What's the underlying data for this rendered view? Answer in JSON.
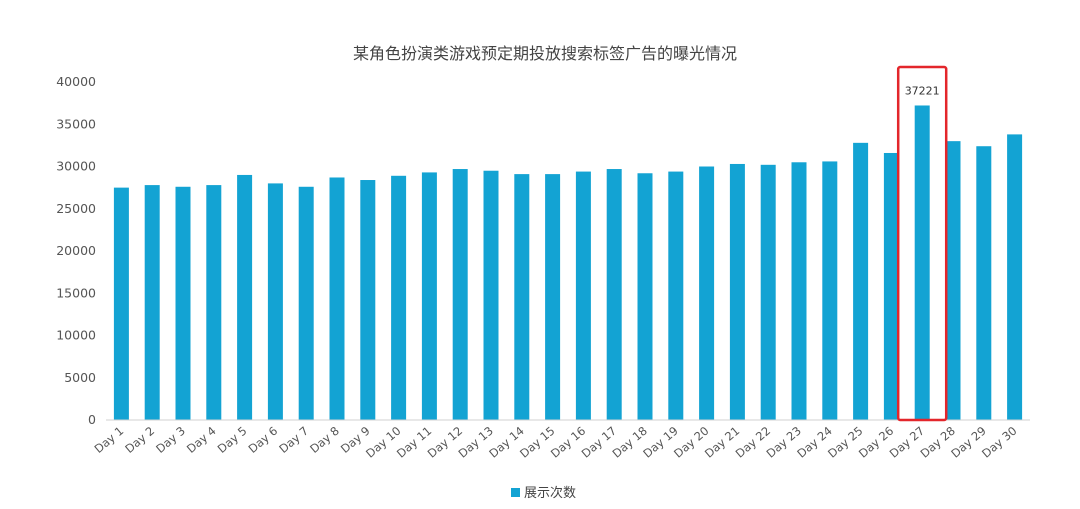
{
  "chart_data": {
    "type": "bar",
    "title": "某角色扮演类游戏预定期投放搜索标签广告的曝光情况",
    "xlabel": "",
    "ylabel": "",
    "ylim": [
      0,
      40000
    ],
    "yticks": [
      0,
      5000,
      10000,
      15000,
      20000,
      25000,
      30000,
      35000,
      40000
    ],
    "grid": false,
    "legend_position": "bottom",
    "bar_color": "#13A3D3",
    "highlight_color": "#E3262B",
    "categories": [
      "Day 1",
      "Day 2",
      "Day 3",
      "Day 4",
      "Day 5",
      "Day 6",
      "Day 7",
      "Day 8",
      "Day 9",
      "Day 10",
      "Day 11",
      "Day 12",
      "Day 13",
      "Day 14",
      "Day 15",
      "Day 16",
      "Day 17",
      "Day 18",
      "Day 19",
      "Day 20",
      "Day 21",
      "Day 22",
      "Day 23",
      "Day 24",
      "Day 25",
      "Day 26",
      "Day 27",
      "Day 28",
      "Day 29",
      "Day 30"
    ],
    "series": [
      {
        "name": "展示次数",
        "values": [
          27500,
          27800,
          27600,
          27800,
          29000,
          28000,
          27600,
          28700,
          28400,
          28900,
          29300,
          29700,
          29500,
          29100,
          29100,
          29400,
          29700,
          29200,
          29400,
          30000,
          30300,
          30200,
          30500,
          30600,
          32800,
          31600,
          37221,
          33000,
          32400,
          33800
        ]
      }
    ],
    "annotations": [
      {
        "category": "Day 27",
        "label": "37221",
        "highlight": true
      }
    ]
  }
}
